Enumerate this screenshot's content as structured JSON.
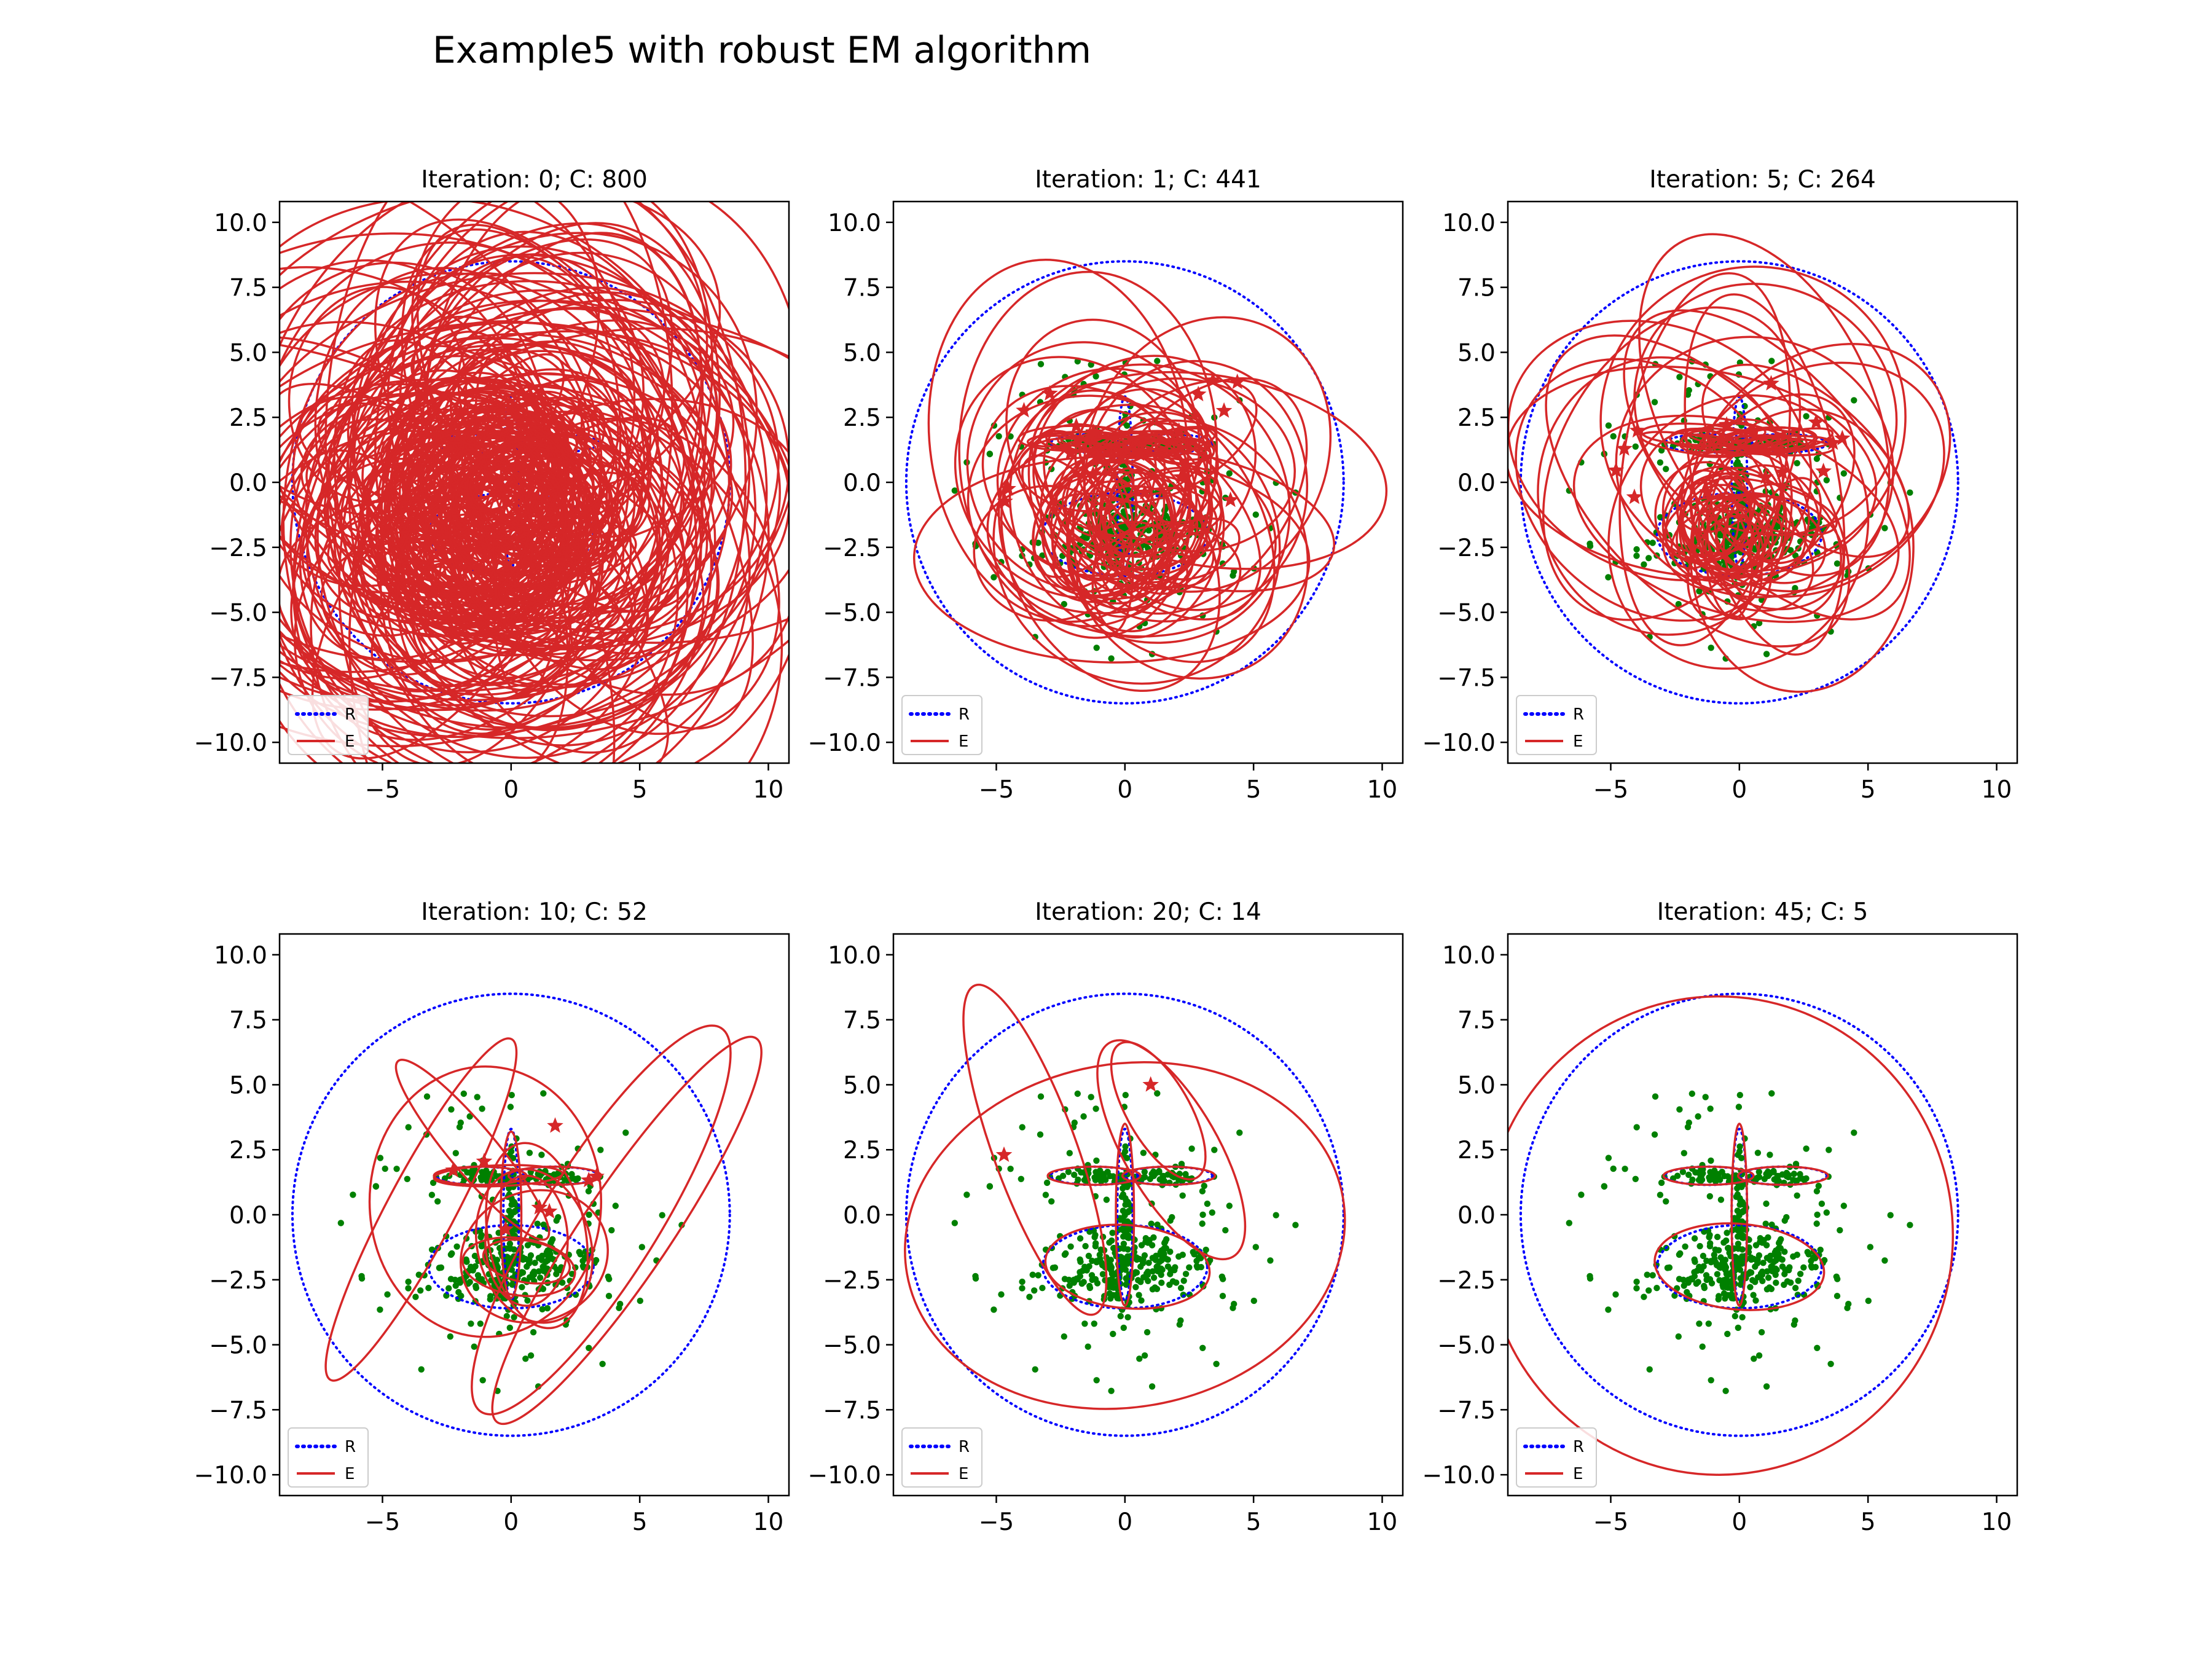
{
  "figure": {
    "title": "Example5 with robust EM algorithm"
  },
  "colors": {
    "reference": "#0000ff",
    "estimate": "#d62728",
    "points": "#008000",
    "axes": "#000000"
  },
  "legend": {
    "placement": "lower-left",
    "entries": [
      {
        "label": "R",
        "style": "dotted",
        "color": "#0000ff"
      },
      {
        "label": "E",
        "style": "solid",
        "color": "#d62728"
      }
    ]
  },
  "axes": {
    "xlim": [
      -9,
      10.8
    ],
    "ylim": [
      -10.8,
      10.8
    ],
    "xticks": [
      -5,
      0,
      5,
      10
    ],
    "yticks": [
      -10.0,
      -7.5,
      -5.0,
      -2.5,
      0.0,
      2.5,
      5.0,
      7.5,
      10.0
    ]
  },
  "chart_data": [
    {
      "type": "scatter",
      "title": "Iteration: 0; C: 800",
      "iteration": 0,
      "components": 800
    },
    {
      "type": "scatter",
      "title": "Iteration: 1; C: 441",
      "iteration": 1,
      "components": 441
    },
    {
      "type": "scatter",
      "title": "Iteration: 5; C: 264",
      "iteration": 5,
      "components": 264
    },
    {
      "type": "scatter",
      "title": "Iteration: 10; C: 52",
      "iteration": 10,
      "components": 52
    },
    {
      "type": "scatter",
      "title": "Iteration: 20; C: 14",
      "iteration": 20,
      "components": 14
    },
    {
      "type": "scatter",
      "title": "Iteration: 45; C: 5",
      "iteration": 45,
      "components": 5,
      "reference_ellipses": [
        {
          "cx": 0,
          "cy": 0,
          "rx": 8.5,
          "ry": 8.5,
          "angle": 0
        },
        {
          "cx": -1.2,
          "cy": 1.5,
          "rx": 1.7,
          "ry": 0.35,
          "angle": 0
        },
        {
          "cx": 1.7,
          "cy": 1.5,
          "rx": 1.7,
          "ry": 0.35,
          "angle": 0
        },
        {
          "cx": 0,
          "cy": 0,
          "rx": 0.3,
          "ry": 3.3,
          "angle": 0
        },
        {
          "cx": 0,
          "cy": -2,
          "rx": 3.2,
          "ry": 1.6,
          "angle": 0
        }
      ],
      "estimated_ellipses": [
        {
          "cx": -0.8,
          "cy": -0.8,
          "rx": 9.1,
          "ry": 9.2,
          "angle": 0
        },
        {
          "cx": -1.2,
          "cy": 1.5,
          "rx": 1.75,
          "ry": 0.35,
          "angle": 0
        },
        {
          "cx": 1.7,
          "cy": 1.5,
          "rx": 1.75,
          "ry": 0.35,
          "angle": 0
        },
        {
          "cx": 0,
          "cy": 0,
          "rx": 0.3,
          "ry": 3.5,
          "angle": 0
        },
        {
          "cx": 0,
          "cy": -2,
          "rx": 3.3,
          "ry": 1.65,
          "angle": -5
        }
      ]
    }
  ]
}
